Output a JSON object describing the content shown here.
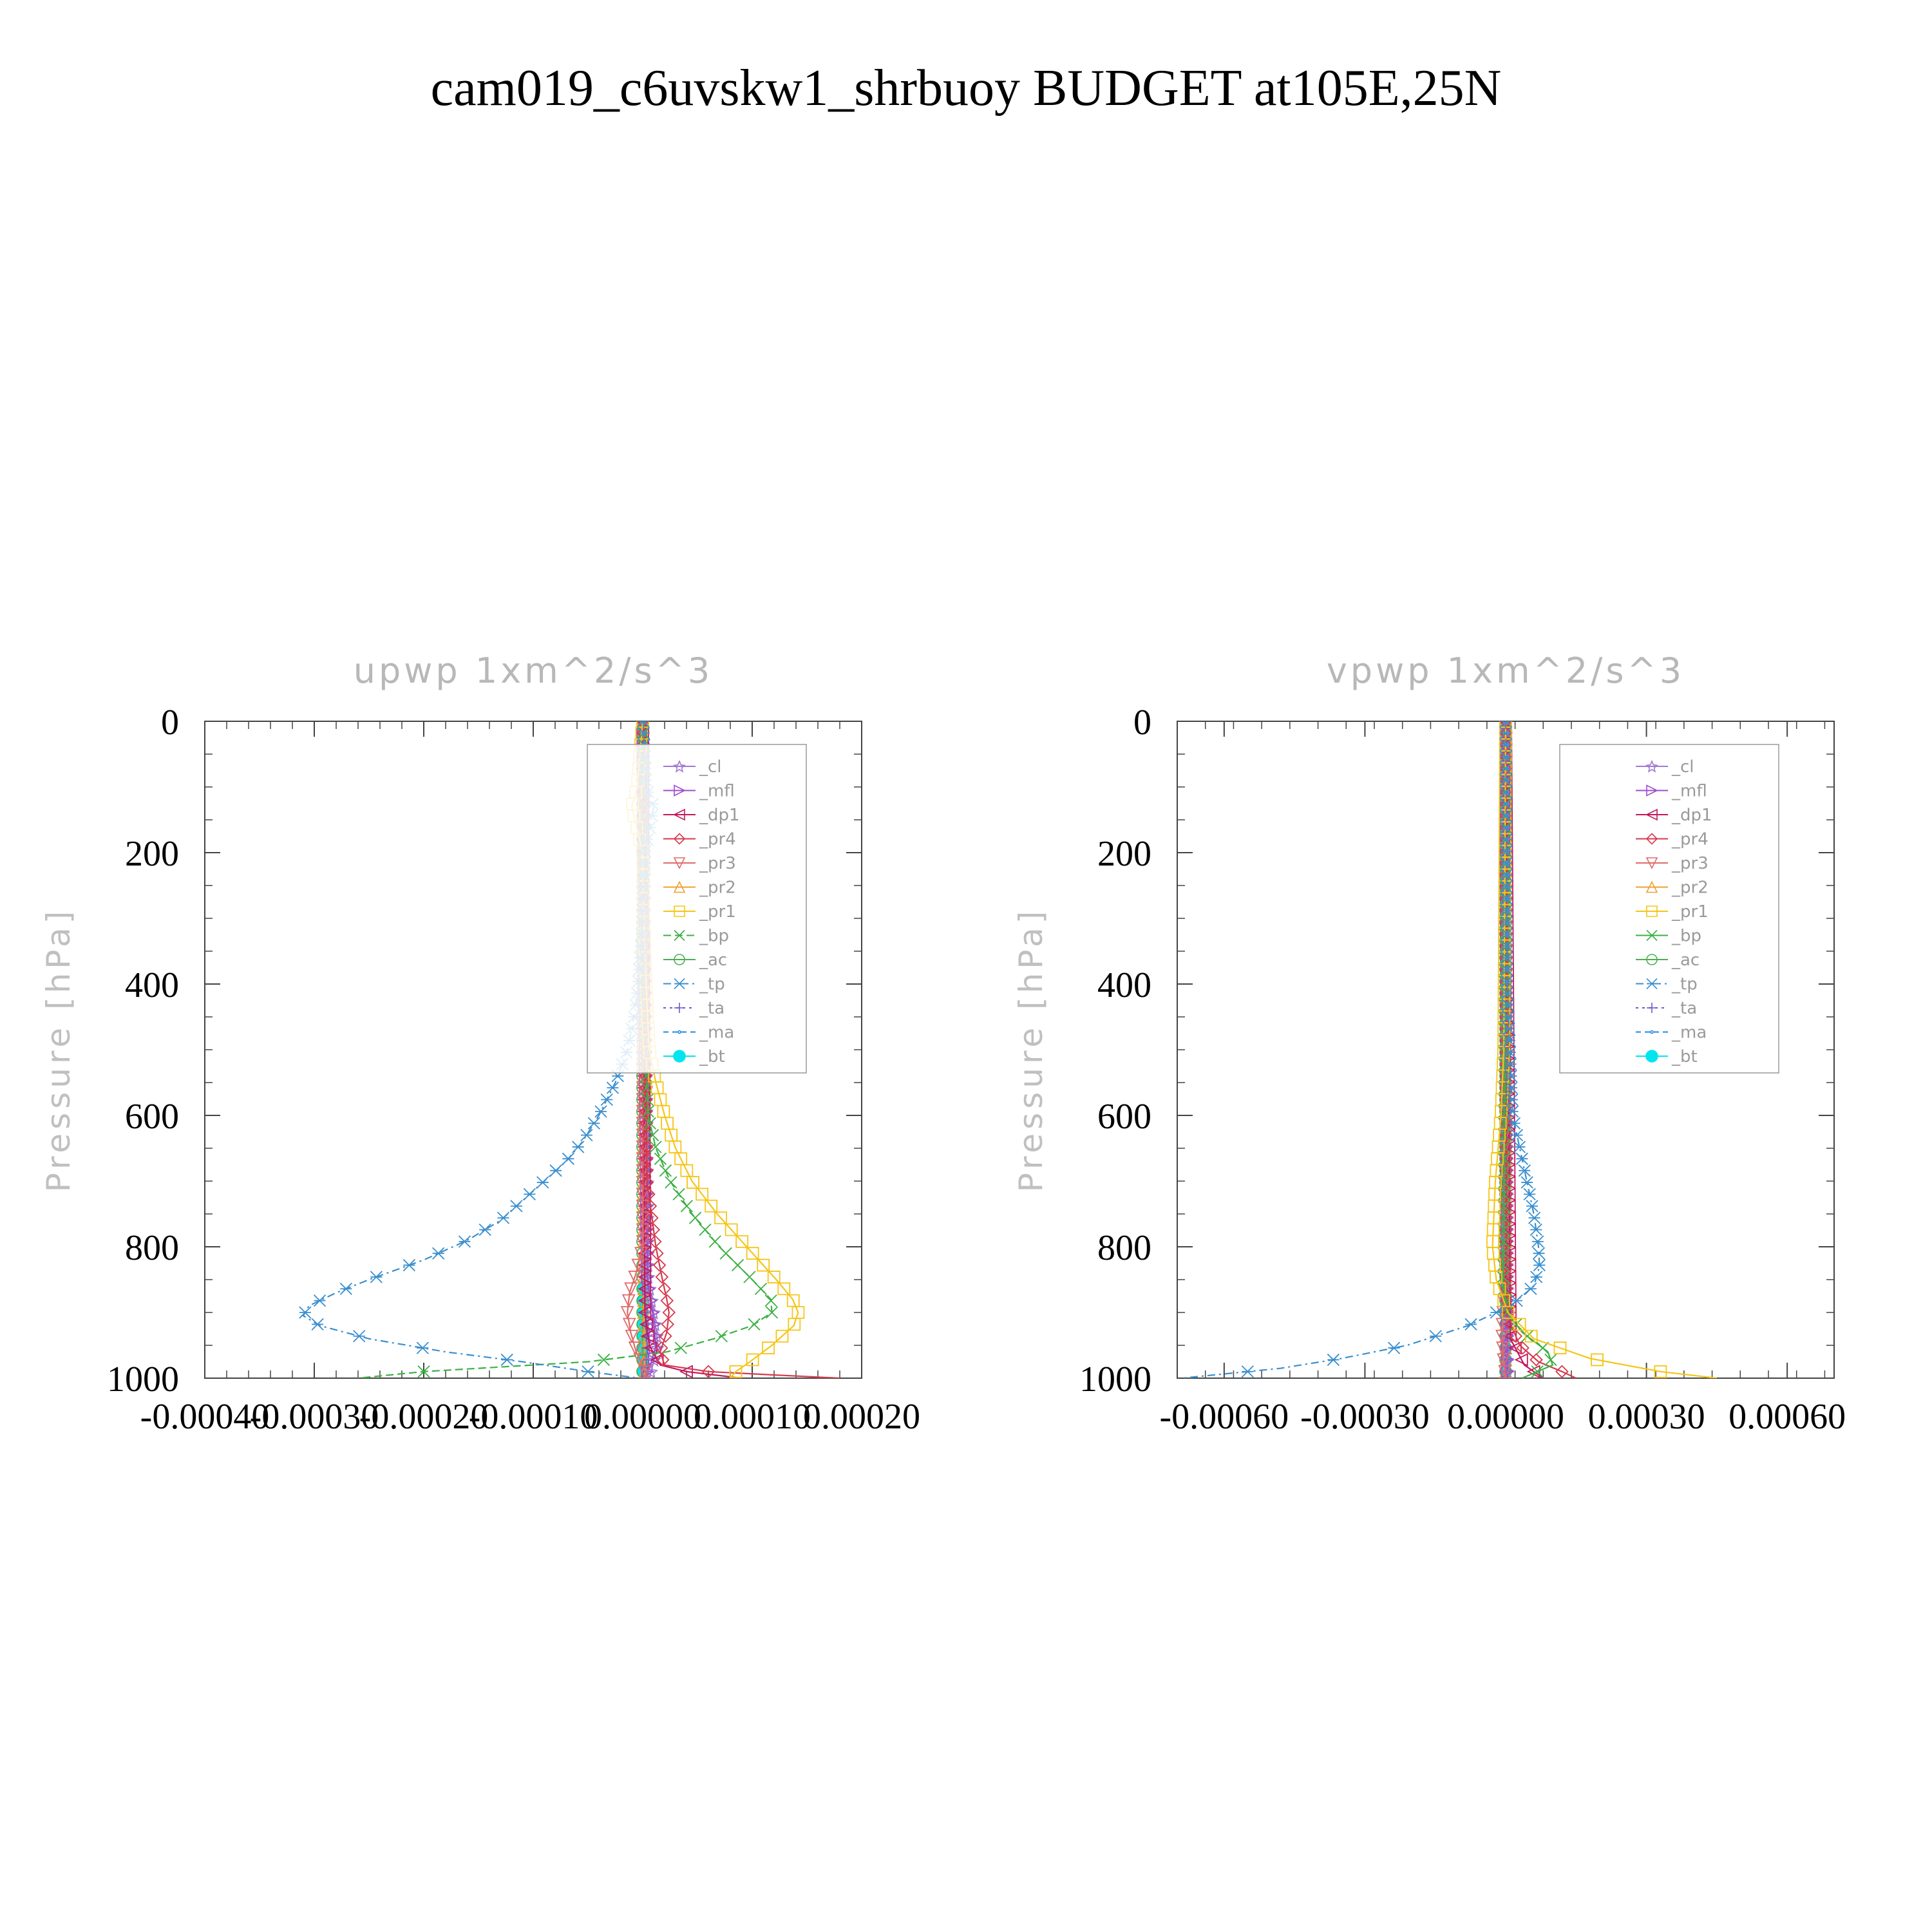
{
  "page": {
    "title": "cam019_c6uvskw1_shrbuoy  BUDGET at105E,25N"
  },
  "chart_data": [
    {
      "type": "line",
      "title": "upwp   1xm^2/s^3",
      "ylabel": "Pressure [hPa]",
      "xlabel": "",
      "xlim": [
        -0.0004,
        0.0002
      ],
      "ylim": [
        1000,
        0
      ],
      "x_ticks": [
        "-0.00040",
        "-0.00030",
        "-0.00020",
        "-0.00010",
        "0.00000",
        "0.00010",
        "0.00020"
      ],
      "x_tick_values": [
        -0.0004,
        -0.0003,
        -0.0002,
        -0.0001,
        0,
        0.0001,
        0.0002
      ],
      "y_ticks": [
        "0",
        "200",
        "400",
        "600",
        "800",
        "1000"
      ],
      "y_tick_values": [
        0,
        200,
        400,
        600,
        800,
        1000
      ],
      "legend": [
        "_cl",
        "_mfl",
        "_dp1",
        "_pr4",
        "_pr3",
        "_pr2",
        "_pr1",
        "_bp",
        "_ac",
        "_tp",
        "_ta",
        "_ma",
        "_bt"
      ],
      "series": [
        {
          "name": "_tp",
          "color": "#3a8fcf",
          "dash": "12,6,3,6",
          "marker": "asterisk",
          "p": [
            0,
            100,
            130,
            200,
            300,
            400,
            450,
            500,
            550,
            600,
            640,
            670,
            700,
            730,
            760,
            790,
            820,
            850,
            870,
            890,
            905,
            920,
            940,
            960,
            975,
            990,
            1000
          ],
          "x": [
            5e-07,
            3e-06,
            1e-05,
            2e-06,
            0,
            -4e-06,
            -8e-06,
            -1.4e-05,
            -2.5e-05,
            -4e-05,
            -5.5e-05,
            -7e-05,
            -9e-05,
            -0.00011,
            -0.00013,
            -0.00016,
            -0.0002,
            -0.00025,
            -0.00028,
            -0.000305,
            -0.00031,
            -0.000295,
            -0.00025,
            -0.00018,
            -0.00011,
            -5e-05,
            -3e-06
          ]
        },
        {
          "name": "_pr1",
          "color": "#f5c518",
          "dash": "",
          "marker": "square",
          "p": [
            0,
            100,
            130,
            200,
            300,
            400,
            500,
            550,
            600,
            650,
            700,
            750,
            800,
            850,
            880,
            900,
            920,
            950,
            975,
            990,
            1000
          ],
          "x": [
            0,
            -5e-06,
            -1e-05,
            0,
            1e-06,
            3e-06,
            6e-06,
            1.2e-05,
            2e-05,
            3e-05,
            4.5e-05,
            6.8e-05,
            9.5e-05,
            0.000122,
            0.000137,
            0.000142,
            0.000138,
            0.000118,
            9.8e-05,
            8.5e-05,
            8e-05
          ]
        },
        {
          "name": "_bp",
          "color": "#3cb043",
          "dash": "12,6",
          "marker": "x",
          "p": [
            0,
            200,
            400,
            500,
            600,
            650,
            700,
            750,
            800,
            850,
            880,
            900,
            920,
            940,
            960,
            975,
            990,
            1000
          ],
          "x": [
            0,
            0,
            1e-06,
            2e-06,
            5e-06,
            1.2e-05,
            2.5e-05,
            4.5e-05,
            7e-05,
            0.0001,
            0.000117,
            0.000118,
            0.0001,
            6.5e-05,
            2.2e-05,
            -5e-05,
            -0.0002,
            -0.00026
          ]
        },
        {
          "name": "_pr4",
          "color": "#d63a4e",
          "dash": "",
          "marker": "diamond",
          "p": [
            0,
            700,
            800,
            850,
            880,
            900,
            930,
            960,
            980,
            990,
            995,
            1000
          ],
          "x": [
            0,
            4e-06,
            1.2e-05,
            1.8e-05,
            2.2e-05,
            2.4e-05,
            2.2e-05,
            1.6e-05,
            2e-05,
            6e-05,
            0.000118,
            0.00018
          ]
        },
        {
          "name": "_pr3",
          "color": "#e06a6a",
          "dash": "",
          "marker": "triangle-down",
          "p": [
            0,
            800,
            840,
            870,
            900,
            930,
            960,
            980,
            1000
          ],
          "x": [
            0,
            0,
            -6e-06,
            -1.2e-05,
            -1.4e-05,
            -1.1e-05,
            -6e-06,
            0,
            4e-06
          ]
        },
        {
          "name": "_dp1",
          "color": "#c2185b",
          "dash": "",
          "marker": "triangle-left",
          "p": [
            0,
            900,
            950,
            980,
            990,
            1000
          ],
          "x": [
            0,
            2e-06,
            6e-06,
            1.6e-05,
            4e-05,
            9e-05
          ]
        },
        {
          "name": "_mfl",
          "color": "#9c4dcc",
          "dash": "",
          "marker": "triangle-right",
          "p": [
            0,
            850,
            900,
            950,
            975,
            1000
          ],
          "x": [
            0,
            4e-06,
            9e-06,
            1.2e-05,
            8e-06,
            2e-06
          ]
        },
        {
          "name": "_cl",
          "color": "#a07ad0",
          "dash": "",
          "marker": "star",
          "p": [
            0,
            850,
            900,
            950,
            1000
          ],
          "x": [
            0,
            5e-06,
            1e-05,
            1.4e-05,
            6e-06
          ]
        },
        {
          "name": "_ta",
          "color": "#6a5acd",
          "dash": "4,6",
          "marker": "plus",
          "p": [
            0,
            900,
            950,
            980,
            1000
          ],
          "x": [
            0,
            2e-06,
            4e-06,
            6e-06,
            3e-06
          ]
        },
        {
          "name": "_pr2",
          "color": "#f0a030",
          "dash": "",
          "marker": "triangle-up",
          "p": [
            0,
            900,
            1000
          ],
          "x": [
            0,
            1e-06,
            2e-06
          ]
        },
        {
          "name": "_ac",
          "color": "#4caf50",
          "dash": "",
          "marker": "circle",
          "p": [
            0,
            1000
          ],
          "x": [
            0,
            0
          ]
        },
        {
          "name": "_ma",
          "color": "#1e88e5",
          "dash": "8,6",
          "marker": "dot",
          "p": [
            0,
            1000
          ],
          "x": [
            0,
            0
          ]
        },
        {
          "name": "_bt",
          "color": "#00e5ee",
          "dash": "",
          "marker": "filled-circle",
          "p": [
            850,
            880,
            900,
            920,
            940,
            960,
            980,
            1000
          ],
          "x": [
            0,
            0,
            0,
            0,
            0,
            0,
            0,
            0
          ]
        }
      ]
    },
    {
      "type": "line",
      "title": "vpwp   1xm^2/s^3",
      "ylabel": "Pressure [hPa]",
      "xlabel": "",
      "xlim": [
        -0.0007,
        0.0007
      ],
      "ylim": [
        1000,
        0
      ],
      "x_ticks": [
        "-0.00060",
        "-0.00030",
        "0.00000",
        "0.00030",
        "0.00060"
      ],
      "x_tick_values": [
        -0.0006,
        -0.0003,
        0,
        0.0003,
        0.0006
      ],
      "y_ticks": [
        "0",
        "200",
        "400",
        "600",
        "800",
        "1000"
      ],
      "y_tick_values": [
        0,
        200,
        400,
        600,
        800,
        1000
      ],
      "legend": [
        "_cl",
        "_mfl",
        "_dp1",
        "_pr4",
        "_pr3",
        "_pr2",
        "_pr1",
        "_bp",
        "_ac",
        "_tp",
        "_ta",
        "_ma",
        "_bt"
      ],
      "series": [
        {
          "name": "_tp",
          "color": "#3a8fcf",
          "dash": "12,6,3,6",
          "marker": "asterisk",
          "p": [
            0,
            400,
            600,
            650,
            700,
            750,
            800,
            830,
            860,
            890,
            920,
            950,
            970,
            985,
            995,
            1000
          ],
          "x": [
            0,
            3e-06,
            1.5e-05,
            3e-05,
            4.5e-05,
            6e-05,
            7e-05,
            7.2e-05,
            6e-05,
            1e-05,
            -8e-05,
            -0.00021,
            -0.00035,
            -0.00048,
            -0.00062,
            -0.00069
          ]
        },
        {
          "name": "_pr1",
          "color": "#f5c518",
          "dash": "",
          "marker": "square",
          "p": [
            0,
            500,
            600,
            700,
            800,
            850,
            900,
            940,
            970,
            990,
            1000
          ],
          "x": [
            0,
            -4e-06,
            -1e-05,
            -2.2e-05,
            -2.8e-05,
            -2e-05,
            5e-06,
            6e-05,
            0.00018,
            0.00033,
            0.00045
          ]
        },
        {
          "name": "_bp",
          "color": "#3cb043",
          "dash": "",
          "marker": "x",
          "p": [
            0,
            800,
            850,
            900,
            930,
            960,
            980,
            1000
          ],
          "x": [
            0,
            -4e-06,
            -6e-06,
            3e-06,
            3.5e-05,
            9e-05,
            0.0001,
            3.5e-05
          ]
        },
        {
          "name": "_pr4",
          "color": "#d63a4e",
          "dash": "",
          "marker": "diamond",
          "p": [
            0,
            880,
            920,
            950,
            975,
            990,
            1000
          ],
          "x": [
            0,
            2e-06,
            1.2e-05,
            3e-05,
            7e-05,
            0.00012,
            0.00015
          ]
        },
        {
          "name": "_pr3",
          "color": "#e06a6a",
          "dash": "",
          "marker": "triangle-down",
          "p": [
            0,
            880,
            930,
            970,
            1000
          ],
          "x": [
            0,
            -4e-06,
            -8e-06,
            -5e-06,
            0
          ]
        },
        {
          "name": "_dp1",
          "color": "#c2185b",
          "dash": "",
          "marker": "triangle-left",
          "p": [
            0,
            940,
            980,
            1000
          ],
          "x": [
            0,
            1e-05,
            4e-05,
            8e-05
          ]
        },
        {
          "name": "_mfl",
          "color": "#9c4dcc",
          "dash": "",
          "marker": "triangle-right",
          "p": [
            0,
            1000
          ],
          "x": [
            0,
            4e-06
          ]
        },
        {
          "name": "_cl",
          "color": "#a07ad0",
          "dash": "",
          "marker": "star",
          "p": [
            0,
            1000
          ],
          "x": [
            0,
            3e-06
          ]
        },
        {
          "name": "_ta",
          "color": "#6a5acd",
          "dash": "4,6",
          "marker": "plus",
          "p": [
            0,
            1000
          ],
          "x": [
            0,
            0
          ]
        },
        {
          "name": "_pr2",
          "color": "#f0a030",
          "dash": "",
          "marker": "triangle-up",
          "p": [
            0,
            1000
          ],
          "x": [
            0,
            0
          ]
        },
        {
          "name": "_ac",
          "color": "#4caf50",
          "dash": "",
          "marker": "circle",
          "p": [
            0,
            1000
          ],
          "x": [
            0,
            0
          ]
        },
        {
          "name": "_ma",
          "color": "#1e88e5",
          "dash": "8,6",
          "marker": "dot",
          "p": [
            0,
            1000
          ],
          "x": [
            0,
            0
          ]
        },
        {
          "name": "_bt",
          "color": "#00e5ee",
          "dash": "",
          "marker": "filled-circle",
          "p": [
            0,
            1000
          ],
          "x": [
            0,
            0
          ]
        }
      ]
    }
  ]
}
